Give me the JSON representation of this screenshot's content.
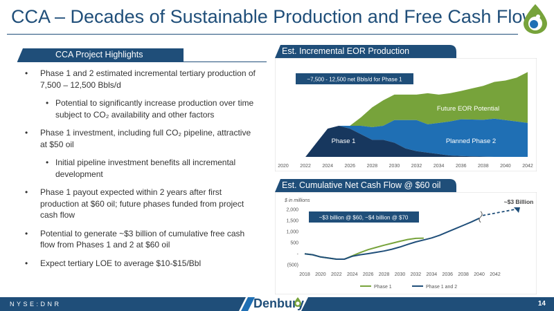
{
  "title": "CCA – Decades of Sustainable Production and Free Cash Flow",
  "highlights": {
    "heading": "CCA Project Highlights",
    "bullets": [
      {
        "level": 1,
        "text": "Phase 1 and 2 estimated incremental tertiary production of 7,500 – 12,500 Bbls/d"
      },
      {
        "level": 2,
        "text": "Potential to significantly increase production over time subject to CO₂ availability and other factors"
      },
      {
        "level": 1,
        "text": "Phase 1 investment, including full CO₂ pipeline, attractive at $50 oil"
      },
      {
        "level": 2,
        "text": "Initial pipeline investment benefits all incremental development"
      },
      {
        "level": 1,
        "text": "Phase 1 payout expected within 2 years after first production at $60 oil; future phases funded from project cash flow"
      },
      {
        "level": 1,
        "text": "Potential to generate ~$3 billion of cumulative free cash flow from Phases 1 and 2 at $60 oil"
      },
      {
        "level": 1,
        "text": "Expect tertiary LOE to average $10-$15/Bbl"
      }
    ]
  },
  "eor_chart": {
    "heading": "Est. Incremental EOR Production",
    "callout": "~7,500 - 12,500 net Bbls/d for Phase 1",
    "labels": {
      "phase1": "Phase 1",
      "phase2": "Planned Phase 2",
      "future": "Future EOR Potential"
    },
    "colors": {
      "phase1": "#17375e",
      "phase2": "#1f6fb4",
      "future": "#77a33b"
    }
  },
  "cash_chart": {
    "heading": "Est. Cumulative Net Cash Flow @ $60 oil",
    "unit_label": "$ in millions",
    "callout": "~$3 billion @ $60, ~$4 billion @ $70",
    "end_label": "~$3 Billion",
    "legend": [
      "Phase 1",
      "Phase 1 and 2"
    ],
    "colors": {
      "phase1": "#77a33b",
      "phase12": "#1f4e79"
    }
  },
  "chart_data": [
    {
      "type": "area",
      "title": "Est. Incremental EOR Production",
      "x": [
        2020,
        2021,
        2022,
        2023,
        2024,
        2025,
        2026,
        2027,
        2028,
        2029,
        2030,
        2031,
        2032,
        2033,
        2034,
        2035,
        2036,
        2037,
        2038,
        2039,
        2040,
        2041,
        2042
      ],
      "x_ticks": [
        2020,
        2022,
        2024,
        2026,
        2028,
        2030,
        2032,
        2034,
        2036,
        2038,
        2040,
        2042
      ],
      "series": [
        {
          "name": "Phase 1",
          "values": [
            0,
            0,
            0,
            5,
            10,
            11,
            10,
            8,
            6,
            6,
            5,
            3,
            2,
            1.5,
            1,
            0.5,
            0.3,
            0.2,
            0.1,
            0,
            0,
            0,
            0
          ]
        },
        {
          "name": "Planned Phase 2",
          "values": [
            0,
            0,
            0,
            0,
            0,
            0,
            1,
            3,
            4.5,
            5,
            8,
            10,
            11,
            10,
            11,
            12,
            13,
            13,
            13,
            13.5,
            13,
            12.5,
            12
          ]
        },
        {
          "name": "Future EOR Potential",
          "values": [
            0,
            0,
            0,
            0,
            0,
            0,
            0,
            3,
            7,
            9,
            9,
            9,
            9,
            11,
            10,
            10,
            10,
            11,
            12,
            13,
            14,
            15.5,
            18
          ]
        }
      ],
      "ylim": [
        0,
        32
      ]
    },
    {
      "type": "line",
      "title": "Est. Cumulative Net Cash Flow @ $60 oil",
      "ylabel": "$ in millions",
      "x": [
        2018,
        2019,
        2020,
        2021,
        2022,
        2023,
        2024,
        2025,
        2026,
        2027,
        2028,
        2029,
        2030,
        2031,
        2032,
        2033,
        2034,
        2035,
        2036,
        2037,
        2038,
        2039,
        2040,
        2041,
        2042
      ],
      "x_ticks": [
        2018,
        2020,
        2022,
        2024,
        2026,
        2028,
        2030,
        2032,
        2034,
        2036,
        2038,
        2040,
        2042
      ],
      "y_ticks": [
        "(500)",
        "-",
        "500",
        "1,000",
        "1,500",
        "2,000"
      ],
      "ylim": [
        -500,
        2000
      ],
      "series": [
        {
          "name": "Phase 1",
          "values": [
            -10,
            -50,
            -150,
            -200,
            -250,
            -250,
            -100,
            50,
            180,
            280,
            380,
            470,
            560,
            640,
            690,
            700,
            null,
            null,
            null,
            null,
            null,
            null,
            null,
            null,
            null
          ]
        },
        {
          "name": "Phase 1 and 2",
          "values": [
            -10,
            -50,
            -150,
            -200,
            -250,
            -250,
            -120,
            -50,
            0,
            60,
            120,
            200,
            300,
            420,
            530,
            620,
            710,
            830,
            980,
            1130,
            1280,
            1430,
            1600,
            null,
            null
          ]
        }
      ]
    }
  ],
  "footer": {
    "ticker": "NYSE:DNR",
    "company": "Denbury",
    "page": "14",
    "bar_color": "#1f4e79"
  }
}
